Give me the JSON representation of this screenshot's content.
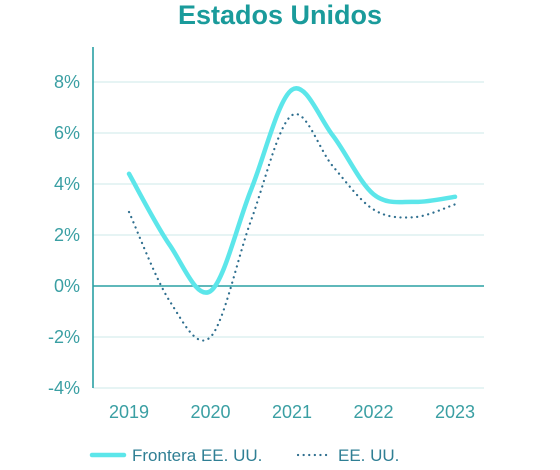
{
  "chart_data": {
    "type": "line",
    "title": "Estados Unidos",
    "xlabel": "",
    "ylabel": "",
    "categories": [
      "2019",
      "2020",
      "2021",
      "2022",
      "2023"
    ],
    "y_ticks": [
      "8%",
      "6%",
      "4%",
      "2%",
      "0%",
      "-2%",
      "-4%"
    ],
    "ylim": [
      -4,
      8
    ],
    "grid": true,
    "legend_position": "bottom",
    "series": [
      {
        "name": "Frontera EE. UU.",
        "color": "#5ce6ea",
        "style": "solid",
        "x": [
          2019,
          2019.5,
          2020,
          2020.5,
          2021,
          2021.5,
          2022,
          2022.5,
          2023
        ],
        "values": [
          4.4,
          1.6,
          -0.2,
          3.8,
          7.7,
          5.9,
          3.6,
          3.3,
          3.5
        ]
      },
      {
        "name": "EE. UU.",
        "color": "#2f6f8f",
        "style": "dotted",
        "x": [
          2019,
          2019.5,
          2020,
          2020.5,
          2021,
          2021.5,
          2022,
          2022.5,
          2023
        ],
        "values": [
          2.9,
          -0.6,
          -2.0,
          2.6,
          6.7,
          4.7,
          3.0,
          2.7,
          3.2
        ]
      }
    ]
  }
}
